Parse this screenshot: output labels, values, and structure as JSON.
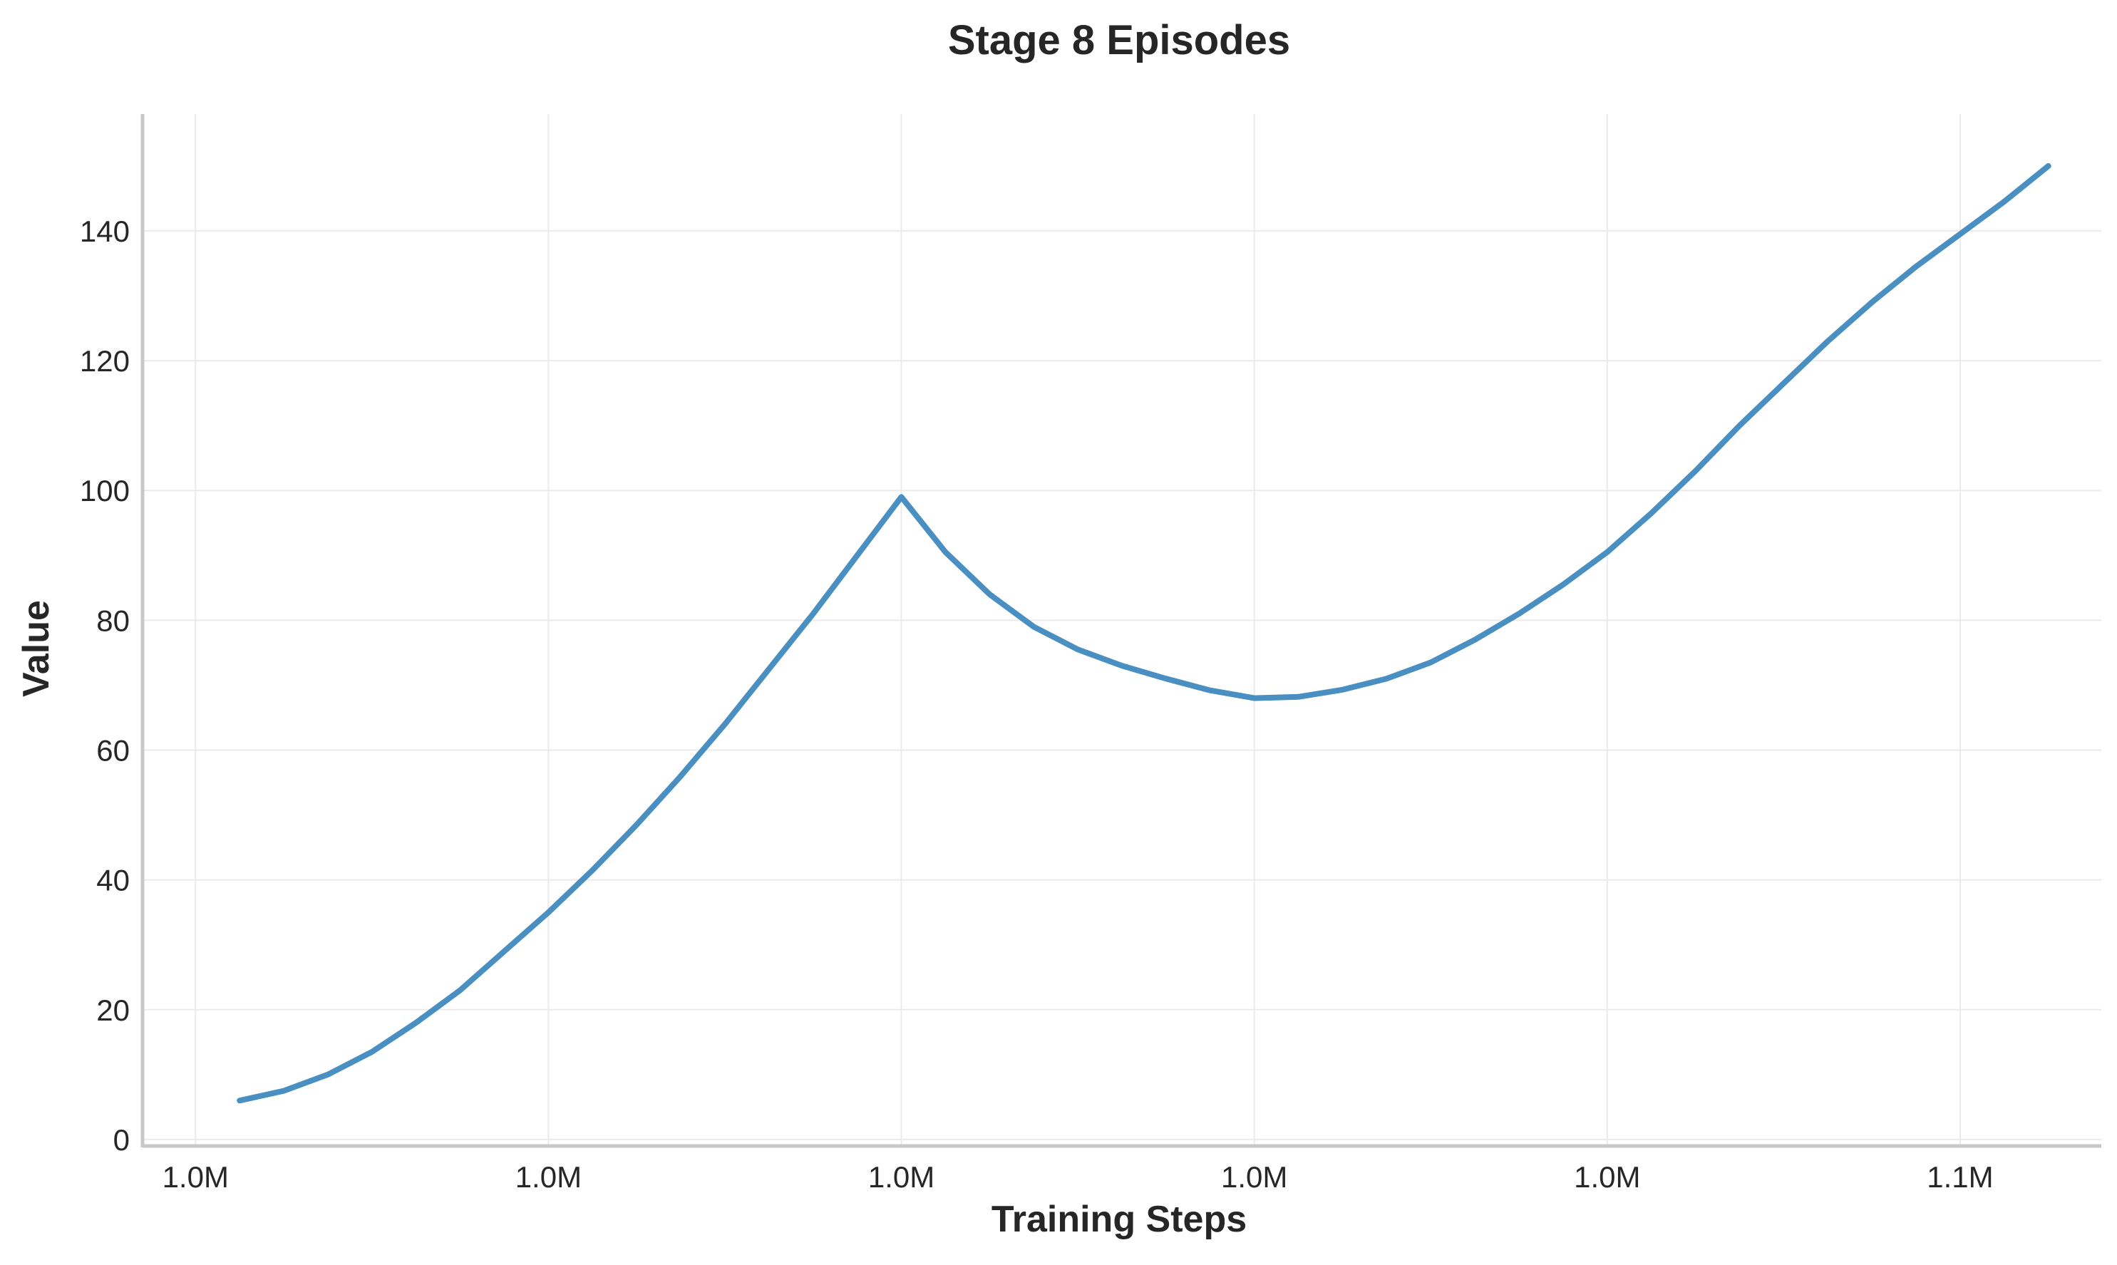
{
  "chart_data": {
    "type": "line",
    "title": "Stage 8 Episodes",
    "xlabel": "Training Steps",
    "ylabel": "Value",
    "xlim": [
      0.8,
      45.2
    ],
    "ylim": [
      -1,
      158
    ],
    "grid": true,
    "x_ticks": [
      {
        "value": 2,
        "label": "1.0M"
      },
      {
        "value": 10,
        "label": "1.0M"
      },
      {
        "value": 18,
        "label": "1.0M"
      },
      {
        "value": 26,
        "label": "1.0M"
      },
      {
        "value": 34,
        "label": "1.0M"
      },
      {
        "value": 42,
        "label": "1.1M"
      }
    ],
    "y_ticks": [
      0,
      20,
      40,
      60,
      80,
      100,
      120,
      140
    ],
    "series": [
      {
        "color": "#4a8fc2",
        "x": [
          3,
          4,
          5,
          6,
          7,
          8,
          9,
          10,
          11,
          12,
          13,
          14,
          15,
          16,
          17,
          18,
          19,
          20,
          21,
          22,
          23,
          24,
          25,
          26,
          27,
          28,
          29,
          30,
          31,
          32,
          33,
          34,
          35,
          36,
          37,
          38,
          39,
          40,
          41,
          42,
          43,
          44
        ],
        "values": [
          6,
          7.5,
          10,
          13.5,
          18,
          23,
          29,
          35,
          41.5,
          48.5,
          56,
          64,
          72.5,
          81,
          90,
          99,
          90.5,
          84,
          79,
          75.5,
          73,
          71,
          69.2,
          68,
          68.2,
          69.3,
          71,
          73.5,
          77,
          81,
          85.5,
          90.5,
          96.5,
          103,
          110,
          116.5,
          123,
          129,
          134.5,
          139.5,
          144.5,
          150
        ]
      }
    ]
  }
}
